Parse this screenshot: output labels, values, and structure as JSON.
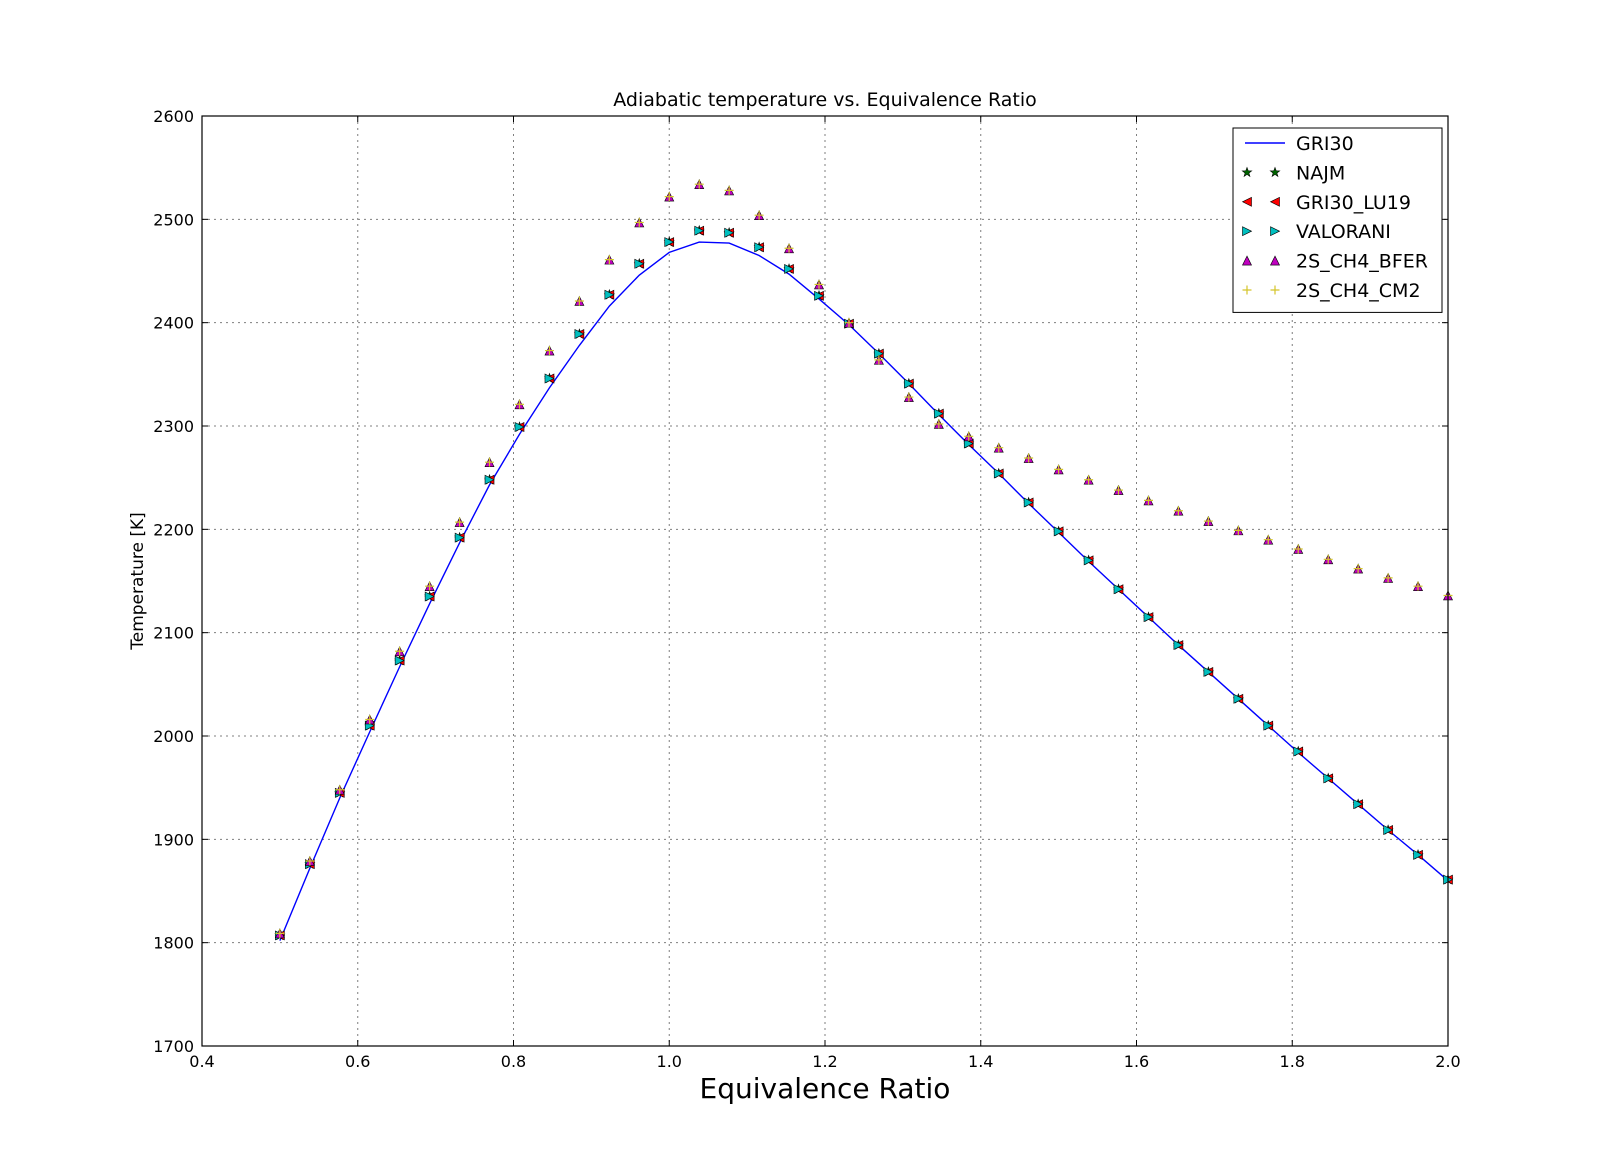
{
  "chart_data": {
    "type": "line",
    "title": "Adiabatic temperature vs. Equivalence Ratio",
    "xlabel": "Equivalence Ratio",
    "ylabel": "Temperature [K]",
    "xlim": [
      0.4,
      2.0
    ],
    "ylim": [
      1700,
      2600
    ],
    "xticks": [
      "0.4",
      "0.6",
      "0.8",
      "1.0",
      "1.2",
      "1.4",
      "1.6",
      "1.8",
      "2.0"
    ],
    "yticks": [
      "1700",
      "1800",
      "1900",
      "2000",
      "2100",
      "2200",
      "2300",
      "2400",
      "2500",
      "2600"
    ],
    "grid": true,
    "legend_position": "top-right",
    "x": [
      0.5,
      0.5385,
      0.5769,
      0.6154,
      0.6538,
      0.6923,
      0.7308,
      0.7692,
      0.8077,
      0.8462,
      0.8846,
      0.9231,
      0.9615,
      1.0,
      1.0385,
      1.0769,
      1.1154,
      1.1538,
      1.1923,
      1.2308,
      1.2692,
      1.3077,
      1.3462,
      1.3846,
      1.4231,
      1.4615,
      1.5,
      1.5385,
      1.5769,
      1.6154,
      1.6538,
      1.6923,
      1.7308,
      1.7692,
      1.8077,
      1.8462,
      1.8846,
      1.9231,
      1.9615,
      2.0
    ],
    "series": [
      {
        "name": "GRI30",
        "style": "line",
        "color": "#0000ff",
        "values": [
          1802,
          1872,
          1940,
          2004,
          2067,
          2128,
          2187,
          2243,
          2292,
          2337,
          2378,
          2416,
          2446,
          2468,
          2478,
          2477,
          2465,
          2447,
          2423,
          2398,
          2370,
          2341,
          2311,
          2282,
          2254,
          2225,
          2197,
          2169,
          2142,
          2115,
          2088,
          2062,
          2036,
          2010,
          1984,
          1959,
          1934,
          1909,
          1885,
          1860
        ]
      },
      {
        "name": "NAJM",
        "style": "marker",
        "marker": "star",
        "color": "#006400",
        "values": [
          1807,
          1876,
          1945,
          2010,
          2073,
          2135,
          2192,
          2248,
          2299,
          2346,
          2389,
          2427,
          2457,
          2478,
          2489,
          2487,
          2473,
          2452,
          2426,
          2399,
          2370,
          2341,
          2312,
          2283,
          2254,
          2226,
          2198,
          2170,
          2142,
          2115,
          2088,
          2062,
          2036,
          2010,
          1985,
          1959,
          1934,
          1909,
          1885,
          1861
        ]
      },
      {
        "name": "GRI30_LU19",
        "style": "marker",
        "marker": "triangle-left",
        "color": "#ff0000",
        "values": [
          1807,
          1876,
          1945,
          2010,
          2073,
          2135,
          2192,
          2248,
          2299,
          2346,
          2389,
          2427,
          2457,
          2478,
          2489,
          2487,
          2473,
          2452,
          2426,
          2399,
          2370,
          2341,
          2312,
          2283,
          2254,
          2226,
          2198,
          2170,
          2142,
          2115,
          2088,
          2062,
          2036,
          2010,
          1985,
          1959,
          1934,
          1909,
          1885,
          1861
        ]
      },
      {
        "name": "VALORANI",
        "style": "marker",
        "marker": "triangle-right",
        "color": "#00bfbf",
        "values": [
          1807,
          1876,
          1945,
          2010,
          2073,
          2135,
          2192,
          2248,
          2299,
          2346,
          2389,
          2427,
          2457,
          2478,
          2489,
          2487,
          2473,
          2452,
          2426,
          2399,
          2370,
          2341,
          2312,
          2283,
          2254,
          2226,
          2198,
          2170,
          2142,
          2115,
          2088,
          2062,
          2036,
          2010,
          1985,
          1959,
          1934,
          1909,
          1885,
          1861
        ]
      },
      {
        "name": "2S_CH4_BFER",
        "style": "marker",
        "marker": "triangle-up",
        "color": "#bf00bf",
        "values": [
          1809,
          1879,
          1948,
          2016,
          2082,
          2145,
          2207,
          2265,
          2321,
          2373,
          2421,
          2461,
          2497,
          2522,
          2534,
          2528,
          2504,
          2472,
          2437,
          2400,
          2364,
          2328,
          2302,
          2290,
          2279,
          2269,
          2258,
          2248,
          2238,
          2228,
          2218,
          2208,
          2199,
          2190,
          2181,
          2171,
          2162,
          2153,
          2145,
          2136
        ]
      },
      {
        "name": "2S_CH4_CM2",
        "style": "marker",
        "marker": "plus",
        "color": "#d4c42a",
        "values": [
          1809,
          1879,
          1948,
          2016,
          2082,
          2145,
          2207,
          2265,
          2321,
          2373,
          2421,
          2461,
          2497,
          2522,
          2534,
          2528,
          2504,
          2472,
          2437,
          2400,
          2364,
          2328,
          2302,
          2290,
          2279,
          2269,
          2258,
          2248,
          2238,
          2228,
          2218,
          2208,
          2199,
          2190,
          2181,
          2171,
          2162,
          2153,
          2145,
          2136
        ]
      }
    ]
  }
}
